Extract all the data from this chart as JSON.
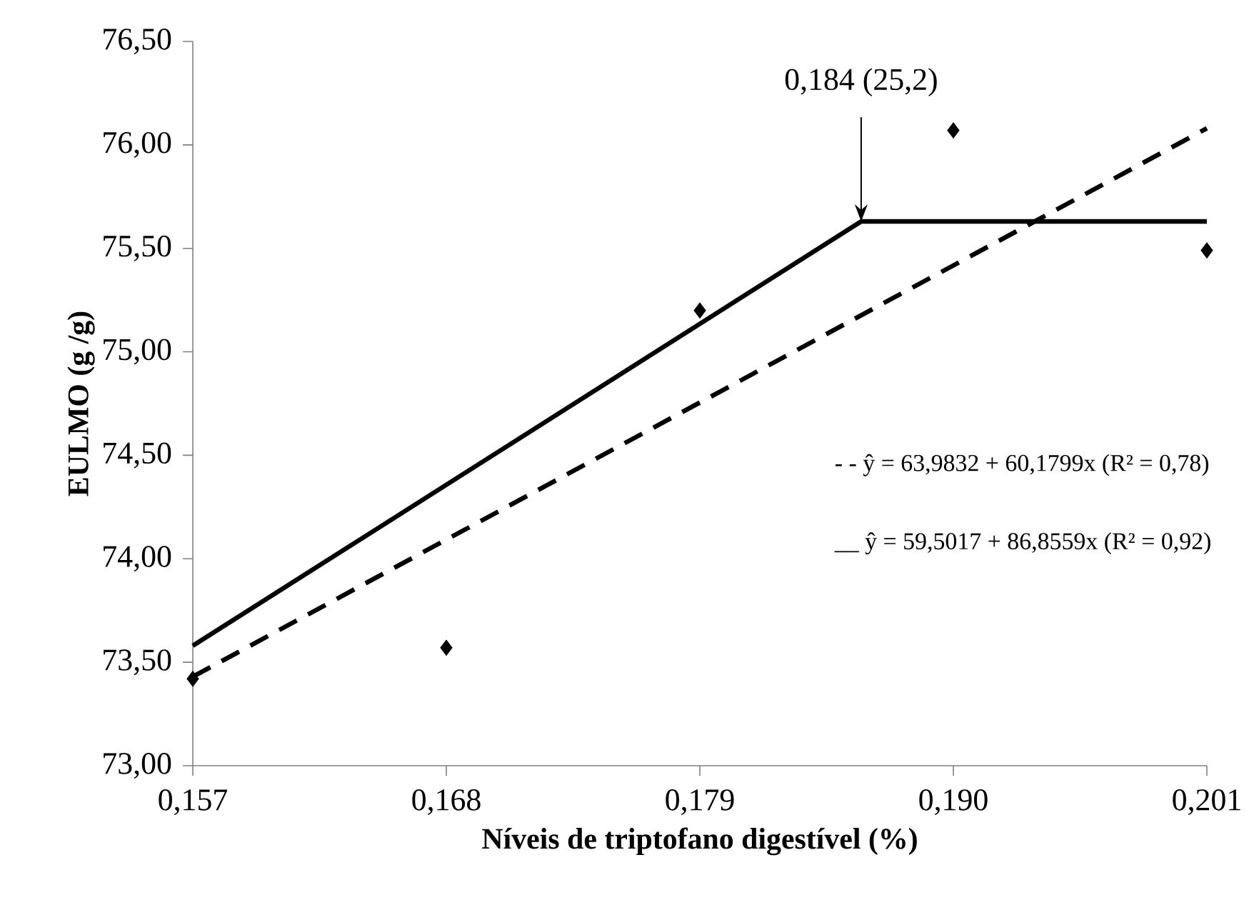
{
  "chart_data": {
    "type": "scatter",
    "xlabel": "Níveis de triptofano digestível (%)",
    "ylabel": "EULMO (g /g)",
    "xlim": [
      0.157,
      0.201
    ],
    "ylim": [
      73.0,
      76.5
    ],
    "xticks": [
      {
        "value": 0.157,
        "label": "0,157"
      },
      {
        "value": 0.168,
        "label": "0,168"
      },
      {
        "value": 0.179,
        "label": "0,179"
      },
      {
        "value": 0.19,
        "label": "0,190"
      },
      {
        "value": 0.201,
        "label": "0,201"
      }
    ],
    "yticks": [
      {
        "value": 73.0,
        "label": "73,00"
      },
      {
        "value": 73.5,
        "label": "73,50"
      },
      {
        "value": 74.0,
        "label": "74,00"
      },
      {
        "value": 74.5,
        "label": "74,50"
      },
      {
        "value": 75.0,
        "label": "75,00"
      },
      {
        "value": 75.5,
        "label": "75,50"
      },
      {
        "value": 76.0,
        "label": "76,00"
      },
      {
        "value": 76.5,
        "label": "76,50"
      }
    ],
    "grid": false,
    "series": [
      {
        "marker": "diamond",
        "color": "#000000",
        "x": [
          0.157,
          0.168,
          0.179,
          0.19,
          0.201
        ],
        "values": [
          73.42,
          73.57,
          75.2,
          76.07,
          75.49
        ]
      },
      {
        "type": "line",
        "marker": "none",
        "line_style": "dashed",
        "color": "#000000",
        "x": [
          0.157,
          0.201
        ],
        "values": [
          73.43,
          76.08
        ]
      },
      {
        "type": "line",
        "marker": "none",
        "line_style": "solid",
        "color": "#000000",
        "x": [
          0.157,
          0.186,
          0.201
        ],
        "values": [
          73.58,
          75.63,
          75.63
        ]
      }
    ],
    "annotations": [
      {
        "text": "0,184 (25,2)",
        "x": 0.186,
        "y": 75.63
      },
      "- - ŷ = 63,9832 + 60,1799x  (R² = 0,78)",
      "__ ŷ = 59,5017 + 86,8559x  (R² = 0,92)"
    ]
  }
}
